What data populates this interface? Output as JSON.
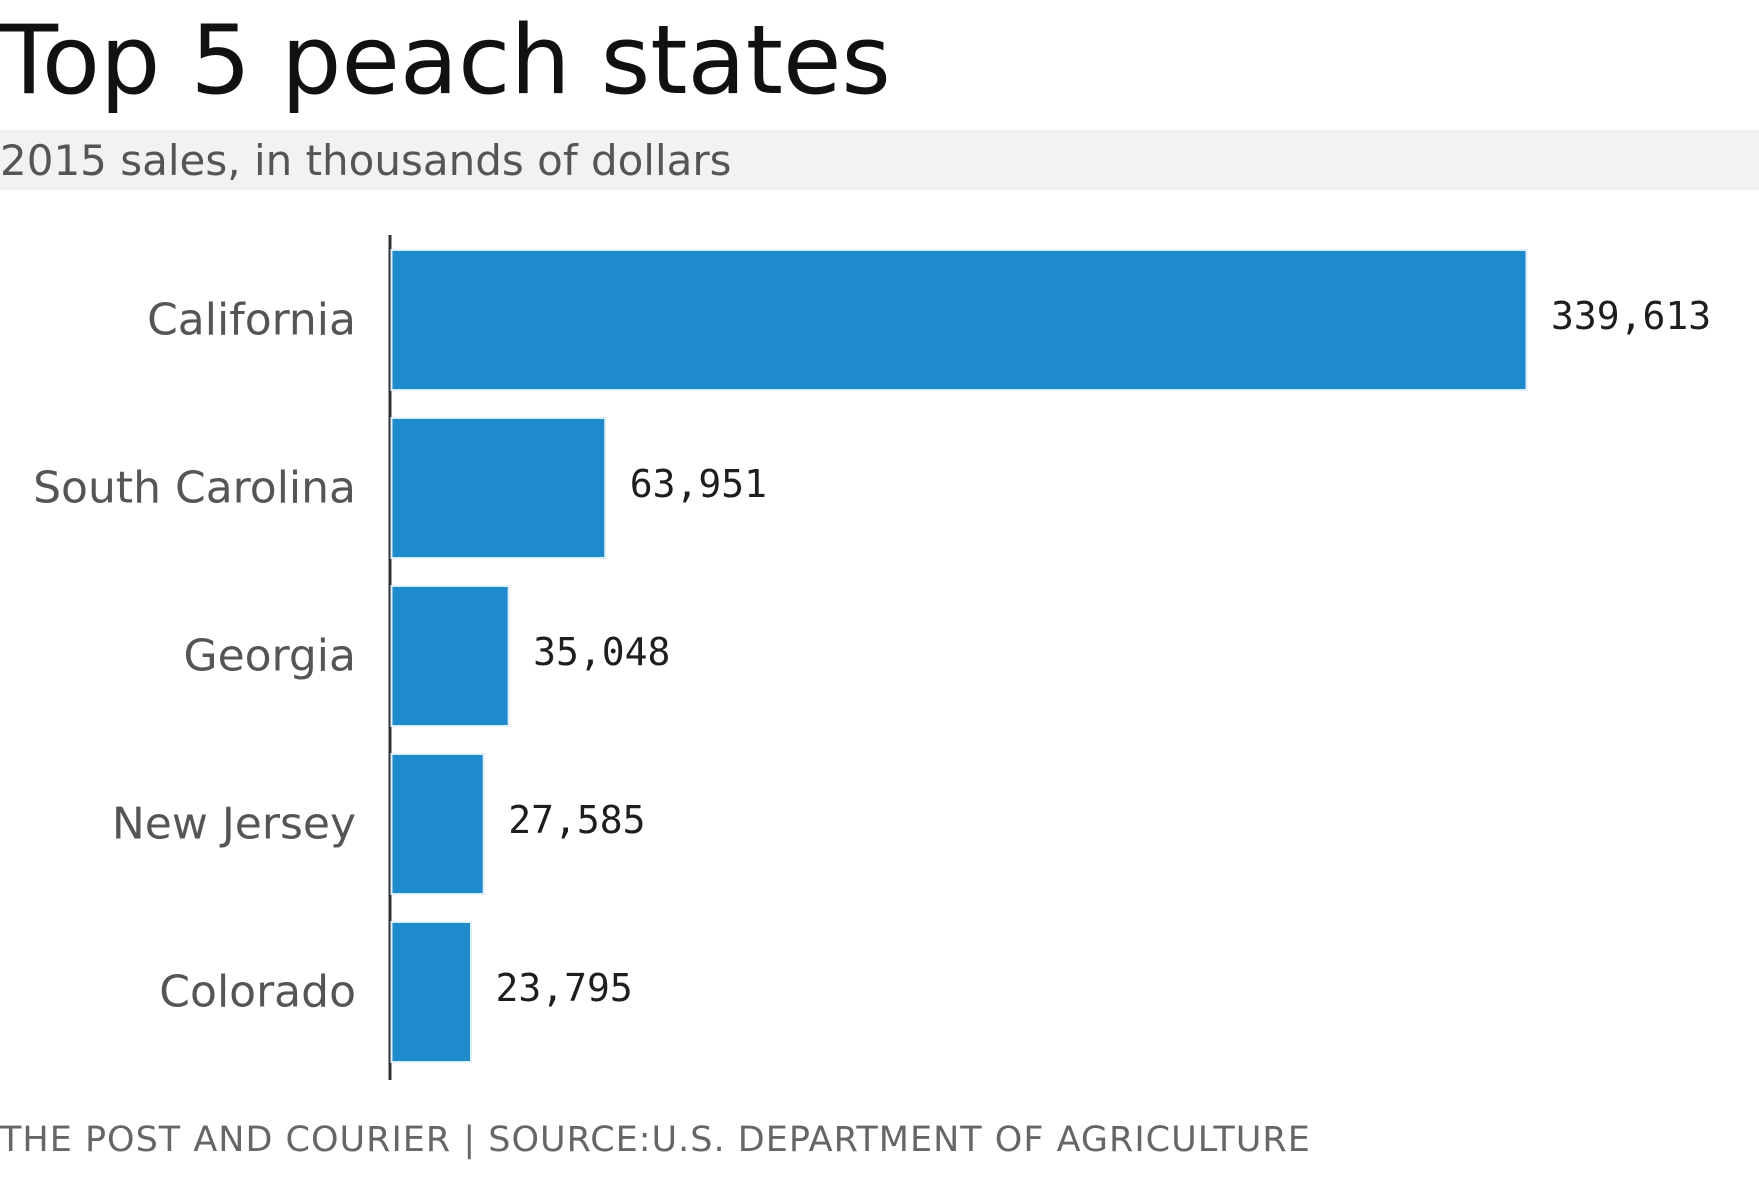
{
  "title": "Top 5 peach states",
  "subtitle": "2015 sales, in thousands of dollars",
  "footer": "THE POST AND COURIER | SOURCE:U.S. DEPARTMENT OF AGRICULTURE",
  "colors": {
    "bar": "#1f8bcc",
    "axis": "#333333",
    "subtitle_band": "#f2f2f2"
  },
  "chart_data": {
    "type": "bar",
    "orientation": "horizontal",
    "title": "Top 5 peach states",
    "subtitle": "2015 sales, in thousands of dollars",
    "categories": [
      "California",
      "South Carolina",
      "Georgia",
      "New Jersey",
      "Colorado"
    ],
    "values": [
      339613,
      63951,
      35048,
      27585,
      23795
    ],
    "value_labels": [
      "339,613",
      "63,951",
      "35,048",
      "27,585",
      "23,795"
    ],
    "xlabel": "",
    "ylabel": "",
    "xlim": [
      0,
      339613
    ],
    "grid": false,
    "legend": "none"
  }
}
